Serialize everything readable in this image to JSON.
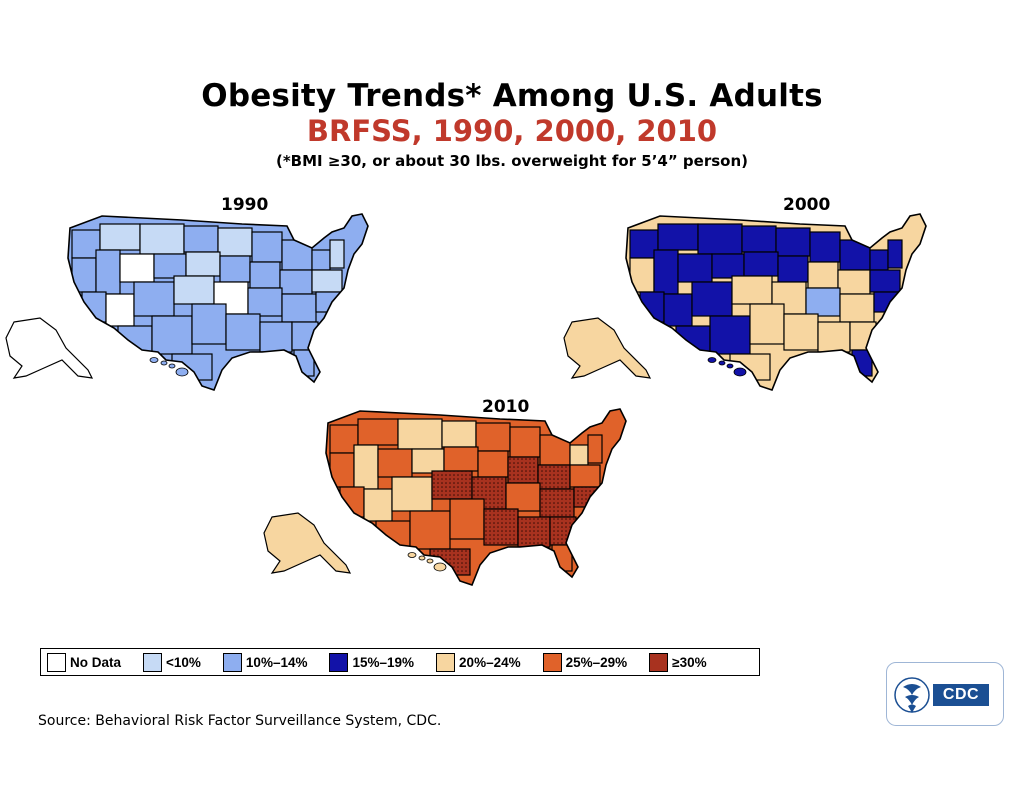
{
  "header": {
    "title": "Obesity Trends* Among U.S. Adults",
    "subtitle": "BRFSS, 1990, 2000, 2010",
    "note": "(*BMI ≥30, or about 30 lbs. overweight for 5’4” person)"
  },
  "colors": {
    "no_data": "#ffffff",
    "lt10": "#c6daf5",
    "10_14": "#8eaef0",
    "15_19": "#1212a8",
    "20_24": "#f7d6a0",
    "25_29": "#e0622a",
    "ge30": "#a8321f",
    "border": "#000000"
  },
  "maps": [
    {
      "year": "1990",
      "dominant": "10_14",
      "accents": [
        "lt10",
        "no_data"
      ]
    },
    {
      "year": "2000",
      "dominant": "20_24",
      "accents": [
        "15_19",
        "10_14"
      ]
    },
    {
      "year": "2010",
      "dominant": "25_29",
      "accents": [
        "ge30",
        "20_24"
      ]
    }
  ],
  "legend": [
    {
      "label": "No Data",
      "color_key": "no_data"
    },
    {
      "label": "<10%",
      "color_key": "lt10"
    },
    {
      "label": "10%–14%",
      "color_key": "10_14"
    },
    {
      "label": "15%–19%",
      "color_key": "15_19"
    },
    {
      "label": "20%–24%",
      "color_key": "20_24"
    },
    {
      "label": "25%–29%",
      "color_key": "25_29"
    },
    {
      "label": "≥30%",
      "color_key": "ge30"
    }
  ],
  "source": "Source: Behavioral Risk Factor Surveillance System, CDC.",
  "logo": {
    "text": "CDC",
    "icon": "hhs-eagle-icon"
  }
}
